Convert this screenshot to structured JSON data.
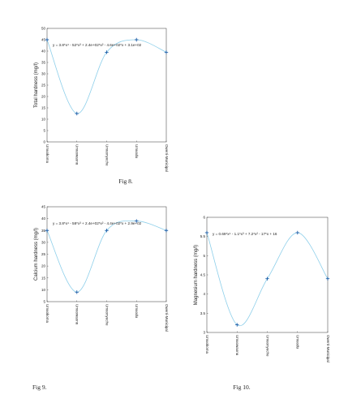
{
  "chart_data": [
    {
      "type": "line",
      "caption": "Fig 8.",
      "ylabel": "Total hardness (mg/l)",
      "equation": "y = 3.8*x⁴ - 52*x³ + 2.4e+02*x² - 4.6e+02*x + 3.1e+02",
      "categories": [
        "Umuokoma",
        "Umuowaonu",
        "Umuonyeche",
        "Umuodu",
        "Owerri-Municipal"
      ],
      "values": [
        45,
        12.5,
        39.5,
        45,
        39.5
      ],
      "ylim": [
        0,
        50
      ],
      "yticks": [
        0,
        5,
        10,
        15,
        20,
        25,
        30,
        35,
        40,
        45,
        50
      ],
      "color": "#8ecfea",
      "marker_color": "#1f5fa8"
    },
    {
      "type": "line",
      "caption": "Fig 9.",
      "ylabel": "Calcium hardness (mg/l)",
      "equation": "y = 3.8*x⁴ - 58*x³ + 2.4e+02*x² - 4.4e+02*x + 2.9e+02",
      "categories": [
        "Umuokoma",
        "Umuowaonu",
        "Umuonyeche",
        "Umuodu",
        "Owerri-Municipal"
      ],
      "values": [
        35,
        9,
        35,
        39,
        35
      ],
      "ylim": [
        5,
        45
      ],
      "yticks": [
        5,
        10,
        15,
        20,
        25,
        30,
        35,
        40,
        45
      ],
      "color": "#8ecfea",
      "marker_color": "#1f5fa8"
    },
    {
      "type": "line",
      "caption": "Fig 10.",
      "ylabel": "Magnesium hardness (mg/l)",
      "equation": "y = 0.69*x⁴ - 1.1*x³ + 7.2*x² - 17*x + 16",
      "categories": [
        "Umuokoma",
        "Umuowaonu",
        "Umuonyeche",
        "Umuodu",
        "Owerri-Municipal"
      ],
      "values": [
        5.6,
        3.2,
        4.4,
        5.6,
        4.4
      ],
      "ylim": [
        3,
        6
      ],
      "yticks": [
        3,
        3.5,
        4,
        4.5,
        5,
        5.5,
        6
      ],
      "color": "#8ecfea",
      "marker_color": "#1f5fa8"
    }
  ]
}
